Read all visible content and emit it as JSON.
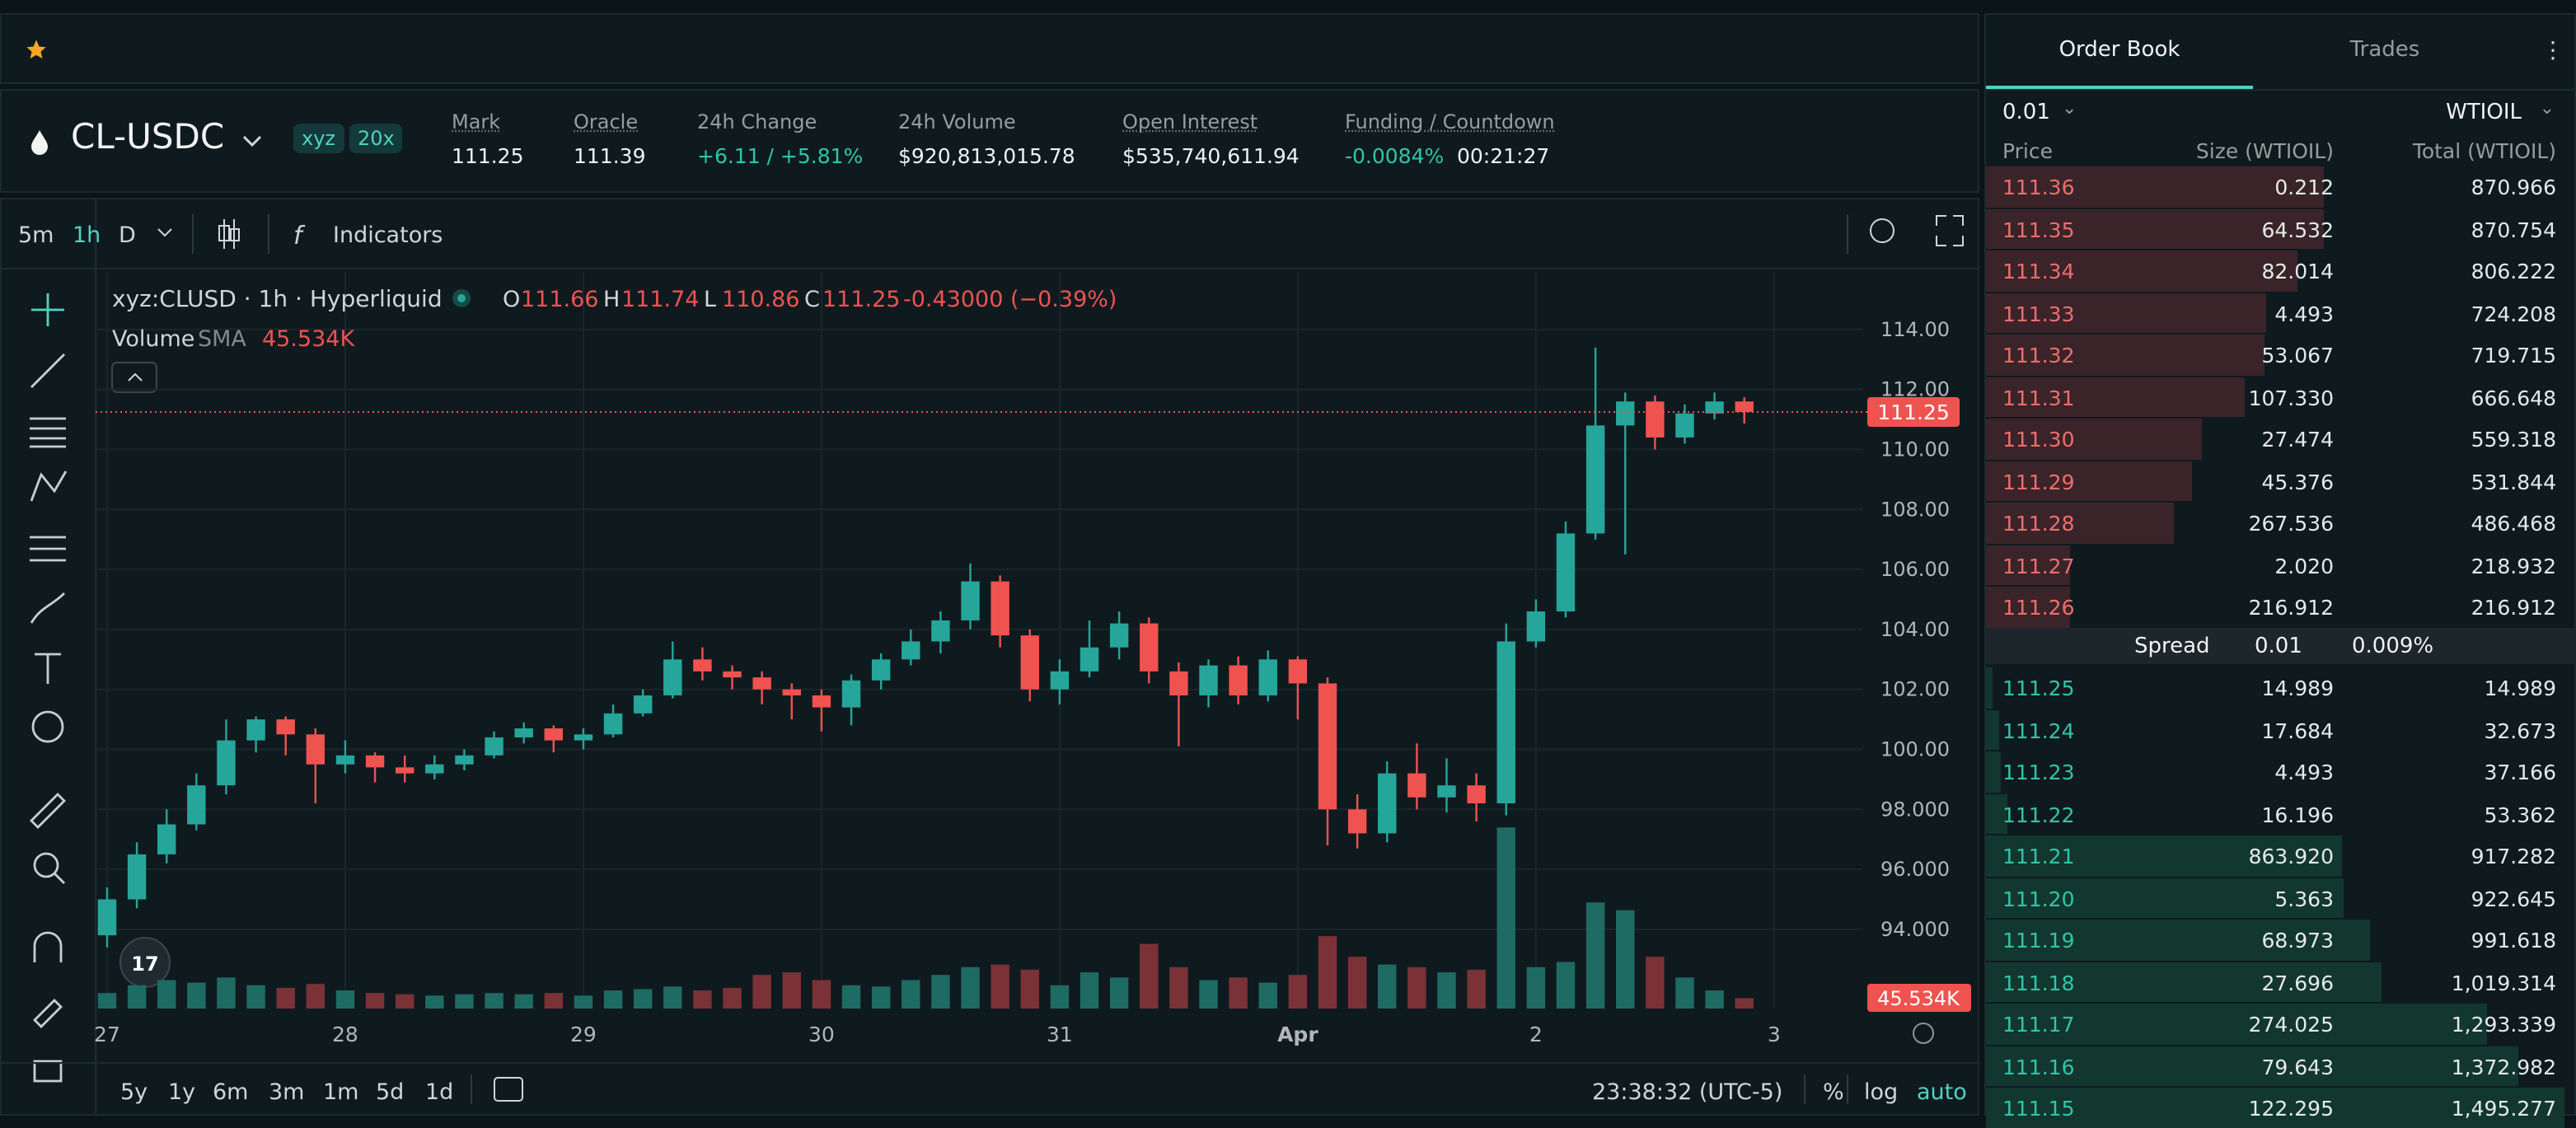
{
  "header": {
    "symbol": "CL-USDC",
    "badges": [
      "xyz",
      "20x"
    ],
    "stats": [
      {
        "label": "Mark",
        "value": "111.25"
      },
      {
        "label": "Oracle",
        "value": "111.39"
      },
      {
        "label": "24h Change",
        "value": "+6.11 / +5.81%"
      },
      {
        "label": "24h Volume",
        "value": "$920,813,015.78"
      },
      {
        "label": "Open Interest",
        "value": "$535,740,611.94"
      },
      {
        "label": "Funding / Countdown",
        "value": "-0.0084%",
        "extra": "00:21:27"
      }
    ]
  },
  "toolbar": {
    "intervals": [
      "5m",
      "1h",
      "D"
    ],
    "indicators": "Indicators"
  },
  "chart": {
    "type": "candlestick",
    "title": "xyz:CLUSD · 1h · Hyperliquid",
    "ohlc": [
      {
        "key": "O",
        "value": "111.66"
      },
      {
        "key": "H",
        "value": "111.74"
      },
      {
        "key": "L",
        "value": "110.86"
      },
      {
        "key": "C",
        "value": "111.25"
      }
    ],
    "change": "-0.43000 (−0.39%)",
    "volume_label": "Volume",
    "sma_label": "SMA",
    "sma_value": "45.534K",
    "last_price": {
      "value": 111.25,
      "label": "111.25"
    },
    "xlim": [
      -1.16,
      176.9
    ],
    "ylim": [
      91.36,
      115.92
    ],
    "xticks": [
      {
        "value": 0,
        "label": "27"
      },
      {
        "value": 24,
        "label": "28"
      },
      {
        "value": 48,
        "label": "29"
      },
      {
        "value": 72,
        "label": "30"
      },
      {
        "value": 96,
        "label": "31"
      },
      {
        "value": 120,
        "label": "Apr"
      },
      {
        "value": 144,
        "label": "2"
      },
      {
        "value": 168,
        "label": "3"
      }
    ],
    "yticks": [
      {
        "value": 114,
        "label": "114.00"
      },
      {
        "value": 112,
        "label": "112.00"
      },
      {
        "value": 110,
        "label": "110.00"
      },
      {
        "value": 108,
        "label": "108.00"
      },
      {
        "value": 106,
        "label": "106.00"
      },
      {
        "value": 104,
        "label": "104.00"
      },
      {
        "value": 102,
        "label": "102.00"
      },
      {
        "value": 100,
        "label": "100.00"
      },
      {
        "value": 98,
        "label": "98.000"
      },
      {
        "value": 96,
        "label": "96.000"
      },
      {
        "value": 94,
        "label": "94.000"
      }
    ],
    "x": [
      0,
      3,
      6,
      9,
      12,
      15,
      18,
      21,
      24,
      27,
      30,
      33,
      36,
      39,
      42,
      45,
      48,
      51,
      54,
      57,
      60,
      63,
      66,
      69,
      72,
      75,
      78,
      81,
      84,
      87,
      90,
      93,
      96,
      99,
      102,
      105,
      108,
      111,
      114,
      117,
      120,
      123,
      126,
      129,
      132,
      135,
      138,
      141,
      144,
      147,
      150,
      153,
      156,
      159,
      162,
      165
    ],
    "open": [
      93.8,
      95.0,
      96.5,
      97.5,
      98.8,
      100.3,
      101.0,
      100.5,
      99.5,
      99.8,
      99.4,
      99.2,
      99.5,
      99.8,
      100.4,
      100.7,
      100.3,
      100.5,
      101.2,
      101.8,
      103.0,
      102.6,
      102.4,
      102.0,
      101.8,
      101.4,
      102.3,
      103.0,
      103.6,
      104.3,
      105.6,
      103.8,
      102.0,
      102.6,
      103.4,
      104.2,
      102.6,
      101.8,
      102.8,
      101.8,
      103.0,
      102.2,
      98.0,
      97.2,
      99.2,
      98.4,
      98.8,
      98.2,
      103.6,
      104.6,
      107.2,
      110.8,
      111.6,
      110.4,
      111.2,
      111.6
    ],
    "high": [
      95.4,
      96.9,
      98.0,
      99.2,
      101.0,
      101.1,
      101.1,
      100.7,
      100.3,
      99.9,
      99.8,
      99.8,
      100.0,
      100.6,
      100.9,
      100.8,
      100.7,
      101.5,
      102.0,
      103.6,
      103.4,
      102.8,
      102.6,
      102.2,
      102.0,
      102.5,
      103.2,
      104.0,
      104.6,
      106.2,
      105.8,
      104.0,
      103.0,
      104.3,
      104.6,
      104.4,
      102.9,
      103.0,
      103.1,
      103.3,
      103.1,
      102.4,
      98.5,
      99.6,
      100.2,
      99.7,
      99.2,
      104.2,
      105.0,
      107.6,
      113.4,
      111.9,
      111.8,
      111.5,
      111.9,
      111.74
    ],
    "low": [
      93.4,
      94.7,
      96.2,
      97.3,
      98.5,
      99.9,
      99.8,
      98.2,
      99.2,
      98.9,
      98.9,
      99.0,
      99.3,
      99.7,
      100.2,
      99.9,
      100.0,
      100.4,
      101.1,
      101.7,
      102.3,
      102.0,
      101.5,
      101.0,
      100.6,
      100.8,
      102.0,
      102.8,
      103.2,
      104.0,
      103.4,
      101.6,
      101.5,
      102.4,
      103.0,
      102.2,
      100.1,
      101.4,
      101.5,
      101.6,
      101.0,
      96.8,
      96.7,
      96.9,
      98.0,
      97.9,
      97.6,
      97.8,
      103.4,
      104.4,
      107.0,
      106.5,
      110.0,
      110.2,
      111.0,
      110.86
    ],
    "close": [
      95.0,
      96.5,
      97.5,
      98.8,
      100.3,
      101.0,
      100.5,
      99.5,
      99.8,
      99.4,
      99.2,
      99.5,
      99.8,
      100.4,
      100.7,
      100.3,
      100.5,
      101.2,
      101.8,
      103.0,
      102.6,
      102.4,
      102.0,
      101.8,
      101.4,
      102.3,
      103.0,
      103.6,
      104.3,
      105.6,
      103.8,
      102.0,
      102.6,
      103.4,
      104.2,
      102.6,
      101.8,
      102.8,
      101.8,
      103.0,
      102.2,
      98.0,
      97.2,
      99.2,
      98.4,
      98.8,
      98.2,
      103.6,
      104.6,
      107.2,
      110.8,
      111.6,
      110.4,
      111.2,
      111.6,
      111.25
    ],
    "volume": [
      60,
      90,
      110,
      100,
      120,
      90,
      80,
      95,
      70,
      60,
      55,
      50,
      55,
      60,
      55,
      60,
      50,
      70,
      75,
      85,
      70,
      80,
      130,
      140,
      110,
      90,
      85,
      110,
      130,
      160,
      170,
      150,
      90,
      140,
      120,
      250,
      160,
      110,
      120,
      100,
      130,
      280,
      200,
      170,
      160,
      140,
      150,
      700,
      160,
      180,
      410,
      380,
      200,
      120,
      70,
      40
    ]
  },
  "bottombar": {
    "ranges": [
      "5y",
      "1y",
      "6m",
      "3m",
      "1m",
      "5d",
      "1d"
    ],
    "time": "23:38:32 (UTC-5)",
    "options": [
      "%",
      "log",
      "auto"
    ]
  },
  "orderbook": {
    "tabs": [
      "Order Book",
      "Trades"
    ],
    "tick": "0.01",
    "unit": "WTIOIL",
    "columns": [
      "Price",
      "Size (WTIOIL)",
      "Total (WTIOIL)"
    ],
    "asks": [
      {
        "price": "111.36",
        "size": "0.212",
        "total": 870.966
      },
      {
        "price": "111.35",
        "size": "64.532",
        "total": 870.754
      },
      {
        "price": "111.34",
        "size": "82.014",
        "total": 806.222
      },
      {
        "price": "111.33",
        "size": "4.493",
        "total": 724.208
      },
      {
        "price": "111.32",
        "size": "53.067",
        "total": 719.715
      },
      {
        "price": "111.31",
        "size": "107.330",
        "total": 666.648
      },
      {
        "price": "111.30",
        "size": "27.474",
        "total": 559.318
      },
      {
        "price": "111.29",
        "size": "45.376",
        "total": 531.844
      },
      {
        "price": "111.28",
        "size": "267.536",
        "total": 486.468
      },
      {
        "price": "111.27",
        "size": "2.020",
        "total": 218.932
      },
      {
        "price": "111.26",
        "size": "216.912",
        "total": 216.912
      }
    ],
    "spread": {
      "label": "Spread",
      "value": "0.01",
      "percent": "0.009%"
    },
    "bids": [
      {
        "price": "111.25",
        "size": "14.989",
        "total": 14.989
      },
      {
        "price": "111.24",
        "size": "17.684",
        "total": 32.673
      },
      {
        "price": "111.23",
        "size": "4.493",
        "total": 37.166
      },
      {
        "price": "111.22",
        "size": "16.196",
        "total": 53.362
      },
      {
        "price": "111.21",
        "size": "863.920",
        "total": 917.282
      },
      {
        "price": "111.20",
        "size": "5.363",
        "total": 922.645
      },
      {
        "price": "111.19",
        "size": "68.973",
        "total": 991.618
      },
      {
        "price": "111.18",
        "size": "27.696",
        "total": {
          "value": 1019.314,
          "label": "1,019.314"
        }
      },
      {
        "price": "111.17",
        "size": "274.025",
        "total": {
          "value": 1293.339,
          "label": "1,293.339"
        }
      },
      {
        "price": "111.16",
        "size": "79.643",
        "total": {
          "value": 1372.982,
          "label": "1,372.982"
        }
      },
      {
        "price": "111.15",
        "size": "122.295",
        "total": {
          "value": 1495.277,
          "label": "1,495.277"
        }
      }
    ]
  }
}
